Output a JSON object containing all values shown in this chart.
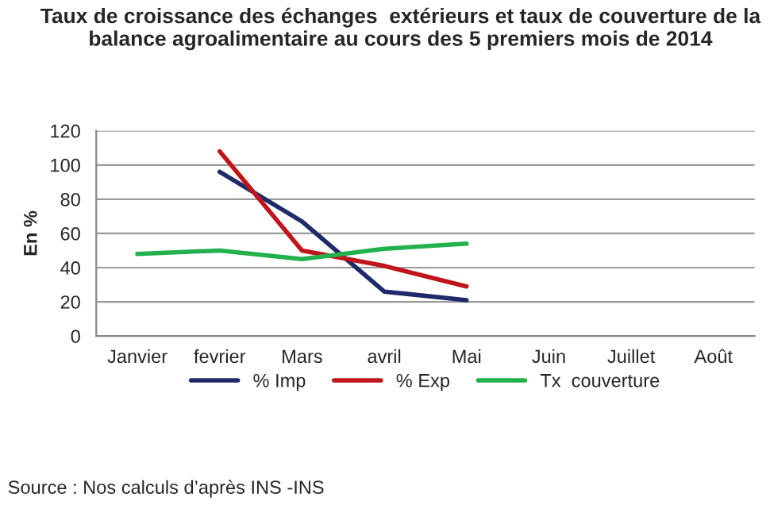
{
  "chart_data": {
    "type": "line",
    "title": "Taux de croissance des échanges  extérieurs et taux de couverture de la balance agroalimentaire au cours des 5 premiers mois de 2014",
    "ylabel": "En %",
    "categories": [
      "Janvier",
      "fevrier",
      "Mars",
      "avril",
      "Mai",
      "Juin",
      "Juillet",
      "Août"
    ],
    "series": [
      {
        "name": "% Imp",
        "color": "#1f2a6b",
        "values": [
          null,
          96,
          67,
          26,
          21,
          null,
          null,
          null
        ]
      },
      {
        "name": "% Exp",
        "color": "#c0161b",
        "values": [
          null,
          108,
          50,
          41,
          29,
          null,
          null,
          null
        ]
      },
      {
        "name": "Tx  couverture",
        "color": "#22b14c",
        "values": [
          48,
          50,
          45,
          51,
          54,
          null,
          null,
          null
        ]
      }
    ],
    "ylim": [
      0,
      120
    ],
    "yticks": [
      0,
      20,
      40,
      60,
      80,
      100,
      120
    ],
    "grid": "y",
    "legend": "bottom",
    "marker": "none",
    "line_style": "solid",
    "annotations": [
      "Source : Nos calculs d’après INS -INS"
    ]
  }
}
